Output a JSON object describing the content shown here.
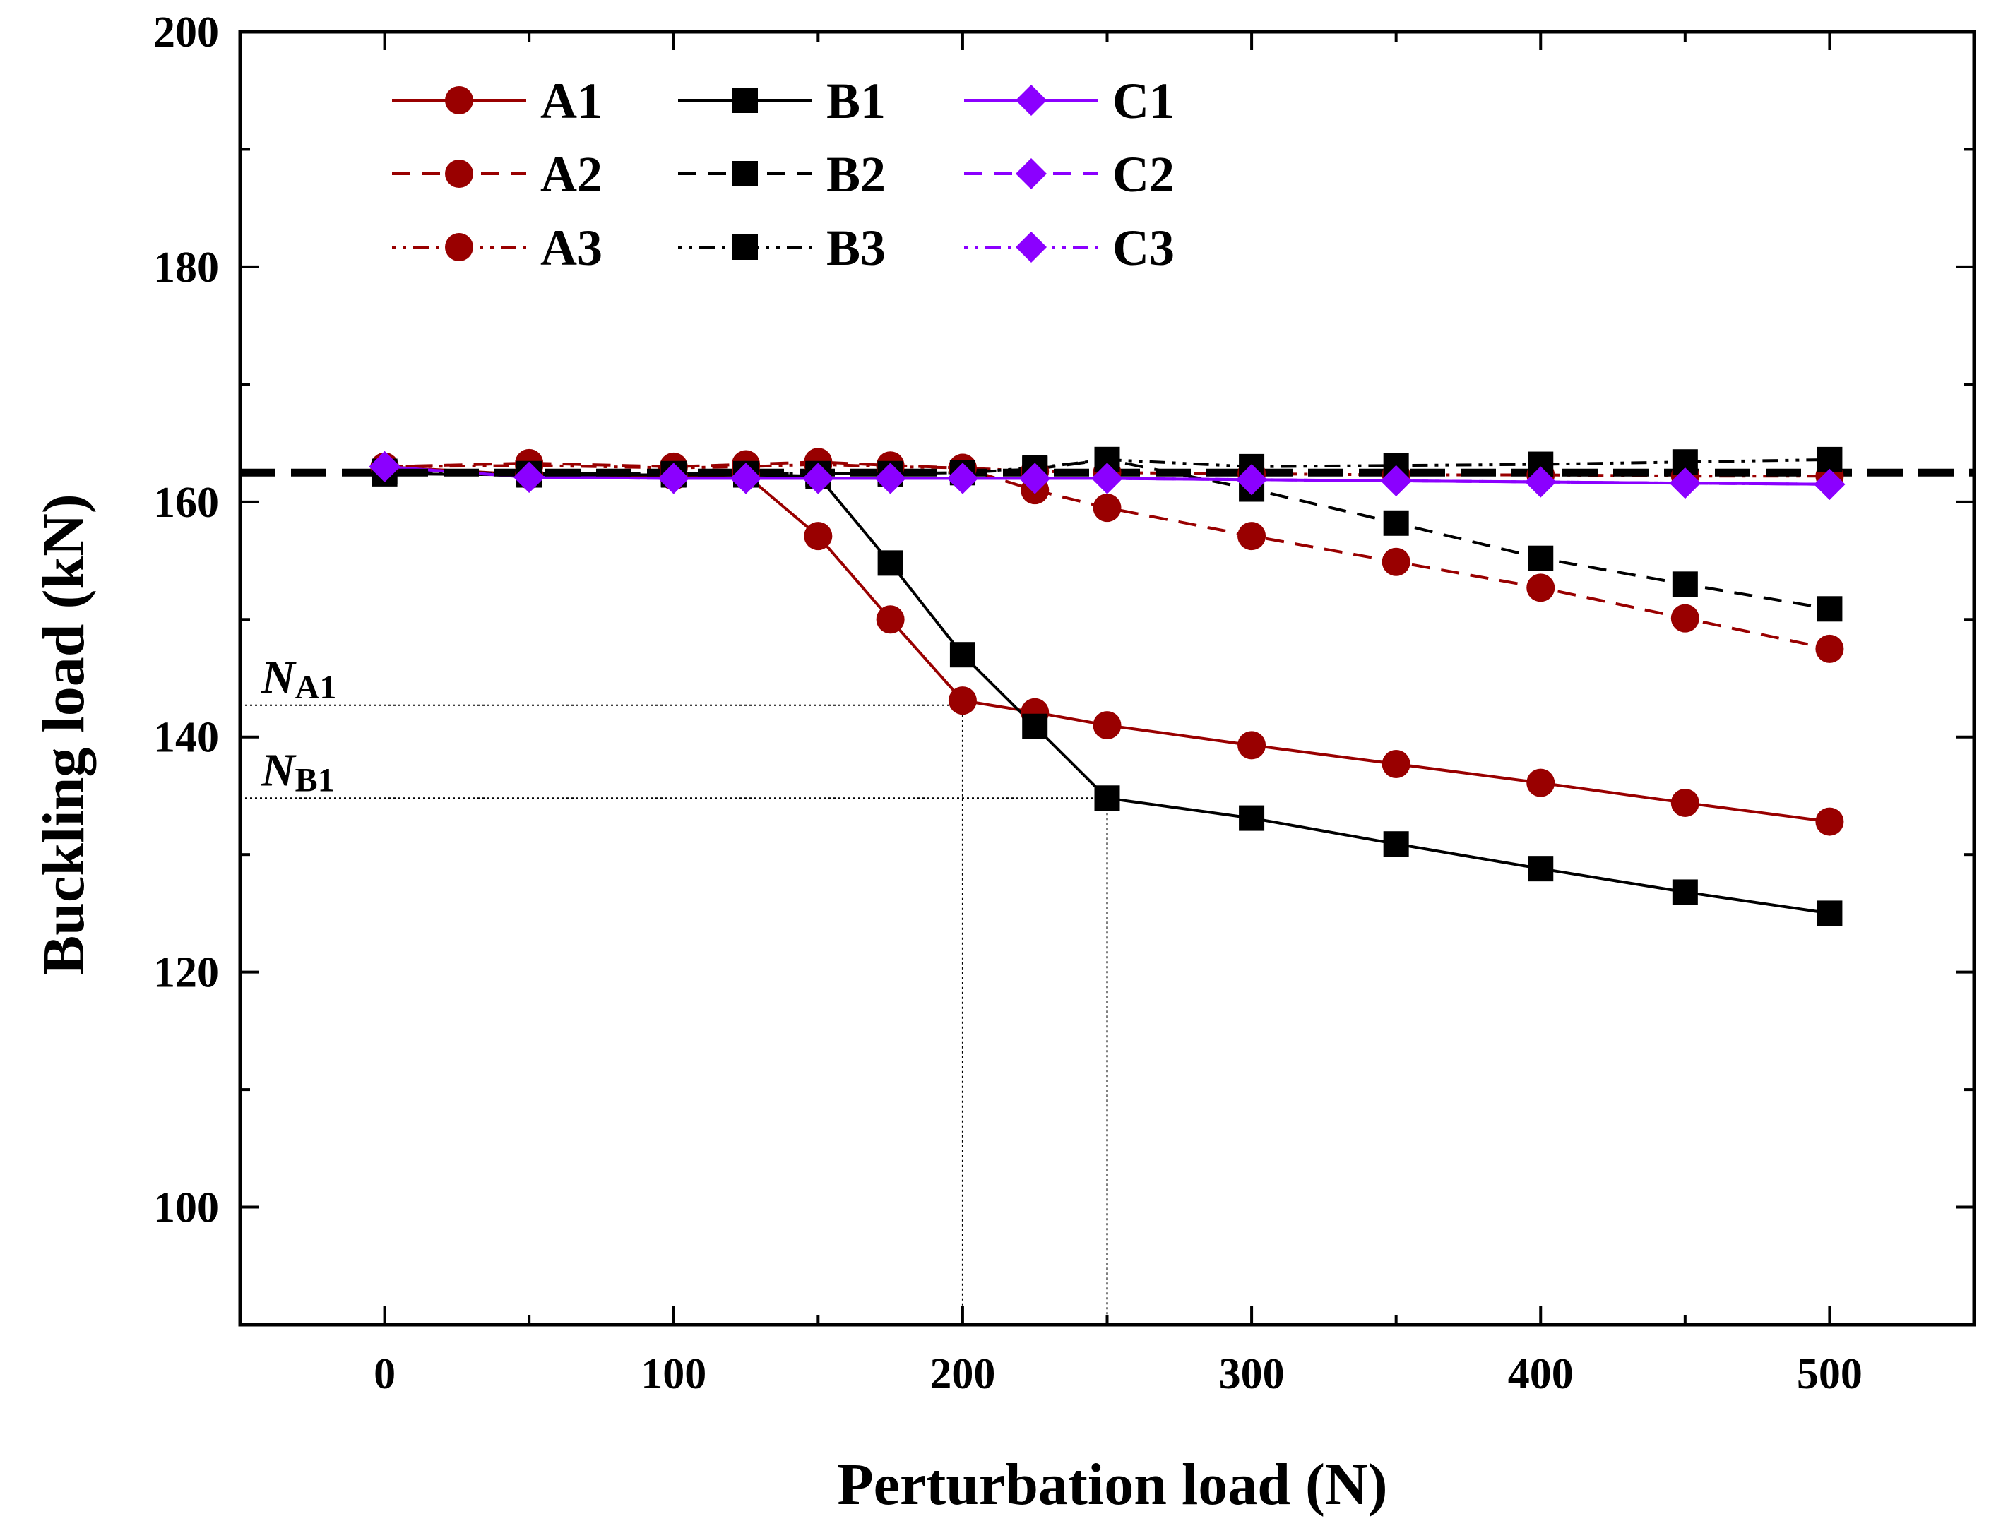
{
  "chart_data": {
    "type": "line",
    "title": "",
    "xlabel": "Perturbation load (N)",
    "ylabel": "Buckling load (kN)",
    "xlim": [
      -50,
      550
    ],
    "ylim": [
      90,
      200
    ],
    "xticks": [
      0,
      100,
      200,
      300,
      400,
      500
    ],
    "yticks": [
      100,
      120,
      140,
      160,
      180,
      200
    ],
    "xtick_labels": [
      "0",
      "100",
      "200",
      "300",
      "400",
      "500"
    ],
    "ytick_labels": [
      "100",
      "120",
      "140",
      "160",
      "180",
      "200"
    ],
    "legend_position": "top-left",
    "reference_line": {
      "y": 162.5,
      "style": "dashed",
      "color": "#000000"
    },
    "series": [
      {
        "name": "A1",
        "color": "#990000",
        "marker": "circle",
        "dash": "solid",
        "x": [
          0,
          50,
          100,
          125,
          150,
          175,
          200,
          225,
          250,
          300,
          350,
          400,
          450,
          500
        ],
        "values": [
          163,
          162.3,
          162.2,
          162.3,
          157.1,
          150,
          143.1,
          142.1,
          141.0,
          139.3,
          137.7,
          136.1,
          134.4,
          132.8
        ]
      },
      {
        "name": "A2",
        "color": "#990000",
        "marker": "circle",
        "dash": "dashed",
        "x": [
          0,
          50,
          100,
          125,
          150,
          175,
          200,
          225,
          250,
          300,
          350,
          400,
          450,
          500
        ],
        "values": [
          163,
          163.3,
          163.0,
          163.2,
          163.4,
          163.1,
          162.9,
          161.0,
          159.5,
          157.1,
          154.9,
          152.7,
          150.1,
          147.5
        ]
      },
      {
        "name": "A3",
        "color": "#990000",
        "marker": "circle",
        "dash": "dashdot",
        "x": [
          0,
          50,
          100,
          125,
          150,
          175,
          200,
          225,
          250,
          300,
          350,
          400,
          450,
          500
        ],
        "values": [
          163,
          163.1,
          162.9,
          163.0,
          163.2,
          163.0,
          162.9,
          162.6,
          162.5,
          162.4,
          162.3,
          162.3,
          162.2,
          162.2
        ]
      },
      {
        "name": "B1",
        "color": "#000000",
        "marker": "square",
        "dash": "solid",
        "x": [
          0,
          50,
          100,
          125,
          150,
          175,
          200,
          225,
          250,
          300,
          350,
          400,
          450,
          500
        ],
        "values": [
          162.4,
          162.3,
          162.3,
          162.3,
          162.2,
          154.8,
          147.0,
          140.9,
          134.8,
          133.1,
          130.9,
          128.8,
          126.8,
          125.0
        ]
      },
      {
        "name": "B2",
        "color": "#000000",
        "marker": "square",
        "dash": "dashed",
        "x": [
          0,
          50,
          100,
          125,
          150,
          175,
          200,
          225,
          250,
          300,
          350,
          400,
          450,
          500
        ],
        "values": [
          162.6,
          162.4,
          162.4,
          162.4,
          162.4,
          162.4,
          162.5,
          162.8,
          163.6,
          161.1,
          158.2,
          155.2,
          153.0,
          150.9
        ]
      },
      {
        "name": "B3",
        "color": "#000000",
        "marker": "square",
        "dash": "dashdot",
        "x": [
          0,
          50,
          100,
          125,
          150,
          175,
          200,
          225,
          250,
          300,
          350,
          400,
          450,
          500
        ],
        "values": [
          162.6,
          162.4,
          162.4,
          162.4,
          162.4,
          162.4,
          162.5,
          162.9,
          163.6,
          163.0,
          163.1,
          163.2,
          163.4,
          163.6
        ]
      },
      {
        "name": "C1",
        "color": "#8b00ff",
        "marker": "diamond",
        "dash": "solid",
        "x": [
          0,
          50,
          100,
          125,
          150,
          175,
          200,
          225,
          250,
          300,
          350,
          400,
          450,
          500
        ],
        "values": [
          163,
          162.1,
          162.0,
          162.0,
          162.0,
          162.0,
          162.0,
          162.0,
          162.0,
          161.9,
          161.8,
          161.7,
          161.6,
          161.5
        ]
      },
      {
        "name": "C2",
        "color": "#8b00ff",
        "marker": "diamond",
        "dash": "dashed",
        "x": [
          0,
          50,
          100,
          125,
          150,
          175,
          200,
          225,
          250,
          300,
          350,
          400,
          450,
          500
        ],
        "values": [
          163,
          162.1,
          162.0,
          162.0,
          162.0,
          162.0,
          162.0,
          162.0,
          162.0,
          161.9,
          161.8,
          161.7,
          161.6,
          161.5
        ]
      },
      {
        "name": "C3",
        "color": "#8b00ff",
        "marker": "diamond",
        "dash": "dashdot",
        "x": [
          0,
          50,
          100,
          125,
          150,
          175,
          200,
          225,
          250,
          300,
          350,
          400,
          450,
          500
        ],
        "values": [
          163,
          162.1,
          162.0,
          162.0,
          162.0,
          162.0,
          162.0,
          162.0,
          162.0,
          161.9,
          161.8,
          161.7,
          161.6,
          161.5
        ]
      }
    ],
    "annotations": [
      {
        "main": "N",
        "sub": "A1",
        "x": 200,
        "y": 142.7
      },
      {
        "main": "N",
        "sub": "B1",
        "x": 250,
        "y": 134.8
      }
    ]
  }
}
